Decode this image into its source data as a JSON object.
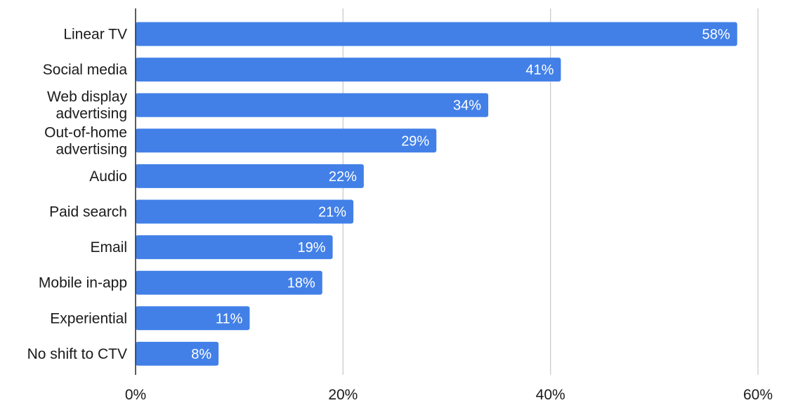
{
  "chart_data": {
    "type": "bar",
    "orientation": "horizontal",
    "categories": [
      "Linear TV",
      "Social media",
      "Web display advertising",
      "Out-of-home advertising",
      "Audio",
      "Paid search",
      "Email",
      "Mobile in-app",
      "Experiential",
      "No shift to CTV"
    ],
    "category_lines": [
      [
        "Linear TV"
      ],
      [
        "Social media"
      ],
      [
        "Web display",
        "advertising"
      ],
      [
        "Out-of-home",
        "advertising"
      ],
      [
        "Audio"
      ],
      [
        "Paid search"
      ],
      [
        "Email"
      ],
      [
        "Mobile in-app"
      ],
      [
        "Experiential"
      ],
      [
        "No shift to CTV"
      ]
    ],
    "values": [
      58,
      41,
      34,
      29,
      22,
      21,
      19,
      18,
      11,
      8
    ],
    "data_labels": [
      "58%",
      "41%",
      "34%",
      "29%",
      "22%",
      "21%",
      "19%",
      "18%",
      "11%",
      "8%"
    ],
    "x_ticks": [
      0,
      20,
      40,
      60
    ],
    "x_tick_labels": [
      "0%",
      "20%",
      "40%",
      "60%"
    ],
    "xlim": [
      0,
      60
    ],
    "title": "",
    "xlabel": "",
    "ylabel": "",
    "grid": "vertical",
    "legend": "none",
    "colors": {
      "bar": "#4280e8",
      "grid": "#cccccc",
      "axis": "#333333",
      "data_label": "#ffffff",
      "text": "#1a1a1a"
    }
  }
}
